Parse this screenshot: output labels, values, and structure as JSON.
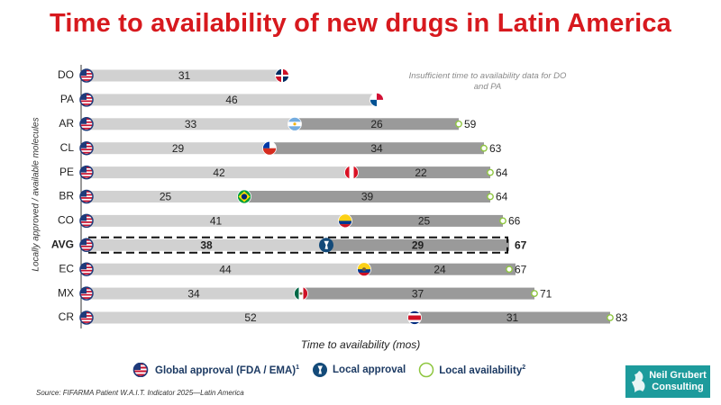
{
  "title": "Time to availability of new drugs in Latin America",
  "note": "Insufficient time to availability data for DO and PA",
  "legend": {
    "global": "Global  approval (FDA / EMA)",
    "global_sup": "1",
    "local_approval": "Local approval",
    "local_availability": "Local availability",
    "local_availability_sup": "2"
  },
  "source": "Source: FIFARMA Patient W.A.I.T. Indicator 2025—Latin America",
  "logo": {
    "line1": "Neil Grubert",
    "line2": "Consulting"
  },
  "colors": {
    "title_red": "#d7191e",
    "approval_bar": "#d1d1d1",
    "availability_bar": "#9a9a9a",
    "availability_circle": "#8ec63f",
    "legend_text": "#1c3a63",
    "logo_bg": "#1d9b9c"
  },
  "chart_data": {
    "type": "bar",
    "orientation": "horizontal",
    "stacked": true,
    "ylabel": "Locally approved / available molecules",
    "xlabel": "Time to availability (mos)",
    "categories": [
      "DO",
      "PA",
      "AR",
      "CL",
      "PE",
      "BR",
      "CO",
      "AVG",
      "EC",
      "MX",
      "CR"
    ],
    "highlight": "AVG",
    "series": [
      {
        "name": "Global approval to Local approval",
        "values": [
          31,
          46,
          33,
          29,
          42,
          25,
          41,
          38,
          44,
          34,
          52
        ]
      },
      {
        "name": "Local approval to Local availability",
        "values": [
          null,
          null,
          26,
          34,
          22,
          39,
          25,
          29,
          24,
          37,
          31
        ]
      }
    ],
    "totals": [
      null,
      null,
      59,
      63,
      64,
      64,
      66,
      67,
      67,
      71,
      83
    ],
    "flags": [
      "dominican-republic",
      "panama",
      "argentina",
      "chile",
      "peru",
      "brazil",
      "colombia",
      "local-approval-marker",
      "ecuador",
      "mexico",
      "costa-rica"
    ],
    "xlim": [
      0,
      83
    ],
    "grid": false,
    "legend_position": "bottom"
  }
}
